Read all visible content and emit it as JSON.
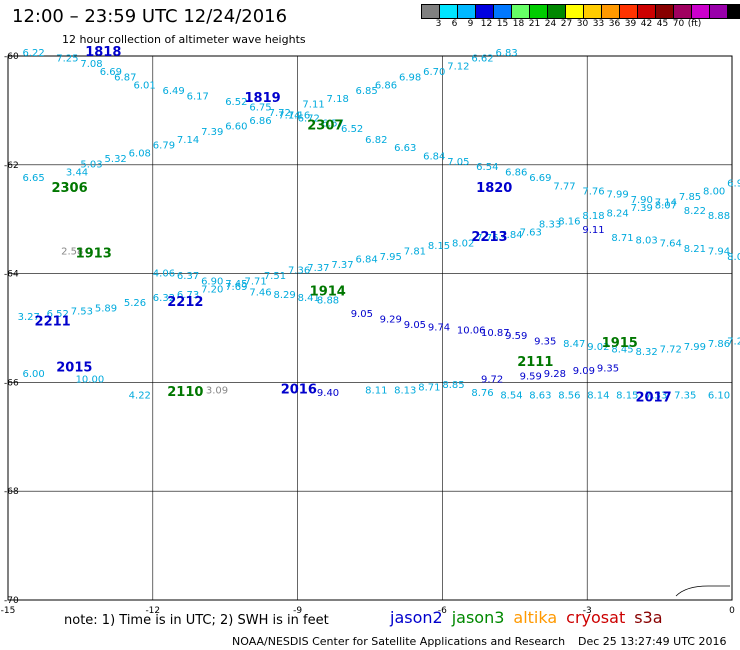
{
  "header": {
    "title": "12:00 – 23:59 UTC 12/24/2016",
    "subtitle": "12 hour collection of altimeter wave heights"
  },
  "color_scale": {
    "colors": [
      "#808080",
      "#00e5ff",
      "#00b8ff",
      "#0000e0",
      "#0078ff",
      "#66ff66",
      "#00cc00",
      "#008800",
      "#ffff00",
      "#ffcc00",
      "#ff9900",
      "#ff3300",
      "#cc0000",
      "#880000",
      "#a00060",
      "#cc00cc",
      "#9900aa",
      "#000000"
    ],
    "labels": [
      "3",
      "6",
      "9",
      "12",
      "15",
      "18",
      "21",
      "24",
      "27",
      "30",
      "33",
      "36",
      "39",
      "42",
      "45",
      "70",
      "(ft)"
    ]
  },
  "axes": {
    "lat_ticks": [
      "-60",
      "-62",
      "-64",
      "-66",
      "-68",
      "-70"
    ],
    "lon_ticks": [
      "-15",
      "-12",
      "-9",
      "-6",
      "-3",
      "0"
    ]
  },
  "chart_data": {
    "type": "scatter",
    "x_unit": "degrees longitude",
    "y_unit": "degrees latitude",
    "xlim": [
      -15,
      0
    ],
    "ylim": [
      -70,
      -60
    ],
    "grid": true,
    "time_labels": [
      {
        "text": "1818",
        "x": -13.4,
        "y": -60.0,
        "color": "#0000cc"
      },
      {
        "text": "1819",
        "x": -10.1,
        "y": -60.85,
        "color": "#0000cc"
      },
      {
        "text": "2307",
        "x": -8.8,
        "y": -61.35,
        "color": "#007700"
      },
      {
        "text": "2306",
        "x": -14.1,
        "y": -62.5,
        "color": "#007700"
      },
      {
        "text": "1820",
        "x": -5.3,
        "y": -62.5,
        "color": "#0000cc"
      },
      {
        "text": "2213",
        "x": -5.4,
        "y": -63.4,
        "color": "#0000cc"
      },
      {
        "text": "1913",
        "x": -13.6,
        "y": -63.7,
        "color": "#007700"
      },
      {
        "text": "1914",
        "x": -8.75,
        "y": -64.4,
        "color": "#007700"
      },
      {
        "text": "2212",
        "x": -11.7,
        "y": -64.6,
        "color": "#0000cc"
      },
      {
        "text": "2211",
        "x": -14.45,
        "y": -64.95,
        "color": "#0000cc"
      },
      {
        "text": "1915",
        "x": -2.7,
        "y": -65.35,
        "color": "#007700"
      },
      {
        "text": "2111",
        "x": -4.45,
        "y": -65.7,
        "color": "#007700"
      },
      {
        "text": "2015",
        "x": -14.0,
        "y": -65.8,
        "color": "#0000cc"
      },
      {
        "text": "2110",
        "x": -11.7,
        "y": -66.25,
        "color": "#007700"
      },
      {
        "text": "2016",
        "x": -9.35,
        "y": -66.2,
        "color": "#0000cc"
      },
      {
        "text": "2017",
        "x": -2.0,
        "y": -66.35,
        "color": "#0000cc"
      }
    ],
    "series": [
      {
        "color": "#00aadd",
        "values": [
          {
            "x": -14.7,
            "y": -60.0,
            "v": "6.22"
          },
          {
            "x": -14.0,
            "y": -60.1,
            "v": "7.25"
          },
          {
            "x": -13.5,
            "y": -60.2,
            "v": "7.08"
          },
          {
            "x": -13.1,
            "y": -60.35,
            "v": "6.69"
          },
          {
            "x": -12.8,
            "y": -60.45,
            "v": "6.87"
          },
          {
            "x": -12.4,
            "y": -60.6,
            "v": "6.01"
          },
          {
            "x": -11.8,
            "y": -60.7,
            "v": "6.49"
          },
          {
            "x": -11.3,
            "y": -60.8,
            "v": "6.17"
          },
          {
            "x": -10.5,
            "y": -60.9,
            "v": "6.52"
          },
          {
            "x": -10.0,
            "y": -61.0,
            "v": "6.75"
          },
          {
            "x": -9.6,
            "y": -61.1,
            "v": "7.72"
          },
          {
            "x": -9.2,
            "y": -61.15,
            "v": "7.16"
          },
          {
            "x": -9.0,
            "y": -61.2,
            "v": "6.72"
          },
          {
            "x": -8.5,
            "y": -61.3,
            "v": "6.57"
          },
          {
            "x": -8.1,
            "y": -61.4,
            "v": "6.52"
          },
          {
            "x": -7.6,
            "y": -61.6,
            "v": "6.82"
          },
          {
            "x": -7.0,
            "y": -61.75,
            "v": "6.63"
          },
          {
            "x": -6.4,
            "y": -61.9,
            "v": "6.84"
          },
          {
            "x": -5.9,
            "y": -62.0,
            "v": "7.05"
          },
          {
            "x": -5.3,
            "y": -62.1,
            "v": "6.54"
          },
          {
            "x": -4.7,
            "y": -62.2,
            "v": "6.86"
          },
          {
            "x": -4.2,
            "y": -62.3,
            "v": "6.69"
          },
          {
            "x": -3.7,
            "y": -62.45,
            "v": "7.77"
          },
          {
            "x": -3.1,
            "y": -62.55,
            "v": "7.76"
          },
          {
            "x": -2.6,
            "y": -62.6,
            "v": "7.99"
          },
          {
            "x": -2.1,
            "y": -62.7,
            "v": "7.90"
          },
          {
            "x": -1.6,
            "y": -62.8,
            "v": "8.07"
          },
          {
            "x": -1.0,
            "y": -62.9,
            "v": "8.22"
          },
          {
            "x": -0.5,
            "y": -63.0,
            "v": "8.88"
          }
        ]
      },
      {
        "color": "#00aadd",
        "values": [
          {
            "x": -14.7,
            "y": -62.3,
            "v": "6.65"
          },
          {
            "x": -13.8,
            "y": -62.2,
            "v": "3.44"
          },
          {
            "x": -13.5,
            "y": -62.05,
            "v": "5.03"
          },
          {
            "x": -13.0,
            "y": -61.95,
            "v": "5.32"
          },
          {
            "x": -12.5,
            "y": -61.85,
            "v": "6.08"
          },
          {
            "x": -12.0,
            "y": -61.7,
            "v": "6.79"
          },
          {
            "x": -11.5,
            "y": -61.6,
            "v": "7.14"
          },
          {
            "x": -11.0,
            "y": -61.45,
            "v": "7.39"
          },
          {
            "x": -10.5,
            "y": -61.35,
            "v": "6.60"
          },
          {
            "x": -10.0,
            "y": -61.25,
            "v": "6.86"
          },
          {
            "x": -9.4,
            "y": -61.15,
            "v": "7.14"
          },
          {
            "x": -8.9,
            "y": -60.95,
            "v": "7.11"
          },
          {
            "x": -8.4,
            "y": -60.85,
            "v": "7.18"
          },
          {
            "x": -7.8,
            "y": -60.7,
            "v": "6.85"
          },
          {
            "x": -7.4,
            "y": -60.6,
            "v": "6.86"
          },
          {
            "x": -6.9,
            "y": -60.45,
            "v": "6.98"
          },
          {
            "x": -6.4,
            "y": -60.35,
            "v": "6.70"
          },
          {
            "x": -5.9,
            "y": -60.25,
            "v": "7.12"
          },
          {
            "x": -5.4,
            "y": -60.1,
            "v": "6.62"
          },
          {
            "x": -4.9,
            "y": -60.0,
            "v": "6.83"
          }
        ]
      },
      {
        "color": "#00aadd",
        "values": [
          {
            "x": -12.0,
            "y": -64.05,
            "v": "4.06"
          },
          {
            "x": -11.5,
            "y": -64.1,
            "v": "6.37"
          },
          {
            "x": -11.0,
            "y": -64.2,
            "v": "6.90"
          },
          {
            "x": -10.5,
            "y": -64.3,
            "v": "7.69"
          },
          {
            "x": -10.0,
            "y": -64.4,
            "v": "7.46"
          },
          {
            "x": -9.5,
            "y": -64.45,
            "v": "8.29"
          },
          {
            "x": -9.0,
            "y": -64.5,
            "v": "8.41"
          },
          {
            "x": -8.6,
            "y": -64.55,
            "v": "8.88"
          }
        ]
      },
      {
        "color": "#0000cc",
        "values": [
          {
            "x": -7.9,
            "y": -64.8,
            "v": "9.05"
          },
          {
            "x": -7.3,
            "y": -64.9,
            "v": "9.29"
          },
          {
            "x": -6.8,
            "y": -65.0,
            "v": "9.05"
          },
          {
            "x": -6.3,
            "y": -65.05,
            "v": "9.74"
          },
          {
            "x": -5.7,
            "y": -65.1,
            "v": "10.06"
          },
          {
            "x": -5.2,
            "y": -65.15,
            "v": "10.87"
          },
          {
            "x": -4.7,
            "y": -65.2,
            "v": "9.59"
          },
          {
            "x": -4.1,
            "y": -65.3,
            "v": "9.35"
          }
        ]
      },
      {
        "color": "#00aadd",
        "values": [
          {
            "x": -3.5,
            "y": -65.35,
            "v": "8.47"
          },
          {
            "x": -3.0,
            "y": -65.4,
            "v": "9.02"
          },
          {
            "x": -2.5,
            "y": -65.45,
            "v": "8.45"
          },
          {
            "x": -2.0,
            "y": -65.5,
            "v": "8.32"
          },
          {
            "x": -1.5,
            "y": -65.45,
            "v": "7.72"
          },
          {
            "x": -1.0,
            "y": -65.4,
            "v": "7.99"
          },
          {
            "x": -0.5,
            "y": -65.35,
            "v": "7.86"
          },
          {
            "x": -0.1,
            "y": -65.3,
            "v": "7.21"
          }
        ]
      },
      {
        "color": "#00aadd",
        "values": [
          {
            "x": -14.7,
            "y": -65.9,
            "v": "6.00"
          },
          {
            "x": -13.6,
            "y": -66.0,
            "v": "10.00"
          },
          {
            "x": -12.5,
            "y": -66.3,
            "v": "4.22"
          },
          {
            "x": -7.6,
            "y": -66.2,
            "v": "8.11"
          },
          {
            "x": -7.0,
            "y": -66.2,
            "v": "8.13"
          },
          {
            "x": -6.5,
            "y": -66.15,
            "v": "8.71"
          },
          {
            "x": -6.0,
            "y": -66.1,
            "v": "8.85"
          },
          {
            "x": -5.4,
            "y": -66.25,
            "v": "8.76"
          },
          {
            "x": -4.8,
            "y": -66.3,
            "v": "8.54"
          },
          {
            "x": -4.2,
            "y": -66.3,
            "v": "8.63"
          },
          {
            "x": -3.6,
            "y": -66.3,
            "v": "8.56"
          },
          {
            "x": -3.0,
            "y": -66.3,
            "v": "8.14"
          },
          {
            "x": -2.4,
            "y": -66.3,
            "v": "8.15"
          },
          {
            "x": -1.8,
            "y": -66.3,
            "v": "7.33"
          },
          {
            "x": -1.2,
            "y": -66.3,
            "v": "7.35"
          },
          {
            "x": -0.5,
            "y": -66.3,
            "v": "6.10"
          }
        ]
      },
      {
        "color": "#0000cc",
        "values": [
          {
            "x": -8.6,
            "y": -66.25,
            "v": "9.40"
          },
          {
            "x": -5.2,
            "y": -66.0,
            "v": "9.72"
          },
          {
            "x": -4.4,
            "y": -65.95,
            "v": "9.59"
          },
          {
            "x": -3.9,
            "y": -65.9,
            "v": "9.28"
          },
          {
            "x": -3.3,
            "y": -65.85,
            "v": "9.09"
          },
          {
            "x": -2.8,
            "y": -65.8,
            "v": "9.35"
          }
        ]
      },
      {
        "color": "#888888",
        "values": [
          {
            "x": -13.9,
            "y": -63.65,
            "v": "2.58"
          },
          {
            "x": -10.9,
            "y": -66.2,
            "v": "3.09"
          }
        ]
      },
      {
        "color": "#00aadd",
        "values": [
          {
            "x": -14.8,
            "y": -64.85,
            "v": "3.27"
          },
          {
            "x": -14.2,
            "y": -64.8,
            "v": "6.52"
          },
          {
            "x": -13.7,
            "y": -64.75,
            "v": "7.53"
          },
          {
            "x": -13.2,
            "y": -64.7,
            "v": "5.89"
          },
          {
            "x": -12.6,
            "y": -64.6,
            "v": "5.26"
          },
          {
            "x": -12.0,
            "y": -64.5,
            "v": "6.32"
          },
          {
            "x": -11.5,
            "y": -64.45,
            "v": "6.73"
          },
          {
            "x": -11.0,
            "y": -64.35,
            "v": "7.20"
          },
          {
            "x": -10.5,
            "y": -64.25,
            "v": "7.45"
          },
          {
            "x": -10.1,
            "y": -64.2,
            "v": "7.71"
          },
          {
            "x": -9.7,
            "y": -64.1,
            "v": "7.51"
          },
          {
            "x": -9.2,
            "y": -64.0,
            "v": "7.36"
          },
          {
            "x": -8.8,
            "y": -63.95,
            "v": "7.37"
          },
          {
            "x": -8.3,
            "y": -63.9,
            "v": "7.37"
          },
          {
            "x": -7.8,
            "y": -63.8,
            "v": "6.84"
          },
          {
            "x": -7.3,
            "y": -63.75,
            "v": "7.95"
          },
          {
            "x": -6.8,
            "y": -63.65,
            "v": "7.81"
          },
          {
            "x": -6.3,
            "y": -63.55,
            "v": "8.15"
          },
          {
            "x": -5.8,
            "y": -63.5,
            "v": "8.02"
          },
          {
            "x": -5.3,
            "y": -63.4,
            "v": "7.76"
          },
          {
            "x": -4.8,
            "y": -63.35,
            "v": "7.84"
          },
          {
            "x": -4.4,
            "y": -63.3,
            "v": "7.63"
          },
          {
            "x": -4.0,
            "y": -63.15,
            "v": "8.33"
          },
          {
            "x": -3.6,
            "y": -63.1,
            "v": "8.16"
          },
          {
            "x": -3.1,
            "y": -63.0,
            "v": "8.18"
          },
          {
            "x": -2.6,
            "y": -62.95,
            "v": "8.24"
          },
          {
            "x": -2.1,
            "y": -62.85,
            "v": "7.39"
          },
          {
            "x": -1.6,
            "y": -62.75,
            "v": "7.14"
          },
          {
            "x": -1.1,
            "y": -62.65,
            "v": "7.85"
          },
          {
            "x": -0.6,
            "y": -62.55,
            "v": "8.00"
          },
          {
            "x": -0.1,
            "y": -62.4,
            "v": "6.96"
          }
        ]
      },
      {
        "color": "#00aadd",
        "values": [
          {
            "x": -2.5,
            "y": -63.4,
            "v": "8.71"
          },
          {
            "x": -2.0,
            "y": -63.45,
            "v": "8.03"
          },
          {
            "x": -1.5,
            "y": -63.5,
            "v": "7.64"
          },
          {
            "x": -1.0,
            "y": -63.6,
            "v": "8.21"
          },
          {
            "x": -0.5,
            "y": -63.65,
            "v": "7.94"
          },
          {
            "x": -0.1,
            "y": -63.75,
            "v": "8.06"
          }
        ]
      },
      {
        "color": "#0000cc",
        "values": [
          {
            "x": -3.1,
            "y": -63.25,
            "v": "9.11"
          }
        ]
      }
    ]
  },
  "footer": {
    "note": "note: 1) Time is in UTC; 2) SWH is in feet",
    "legend": [
      {
        "label": "jason2",
        "color": "#0000cc"
      },
      {
        "label": "jason3",
        "color": "#008800"
      },
      {
        "label": "altika",
        "color": "#ff9900"
      },
      {
        "label": "cryosat",
        "color": "#cc0000"
      },
      {
        "label": "s3a",
        "color": "#880000"
      }
    ],
    "credit": "NOAA/NESDIS Center for Satellite Applications and Research",
    "stamp": "Dec 25 13:27:49 UTC 2016"
  }
}
